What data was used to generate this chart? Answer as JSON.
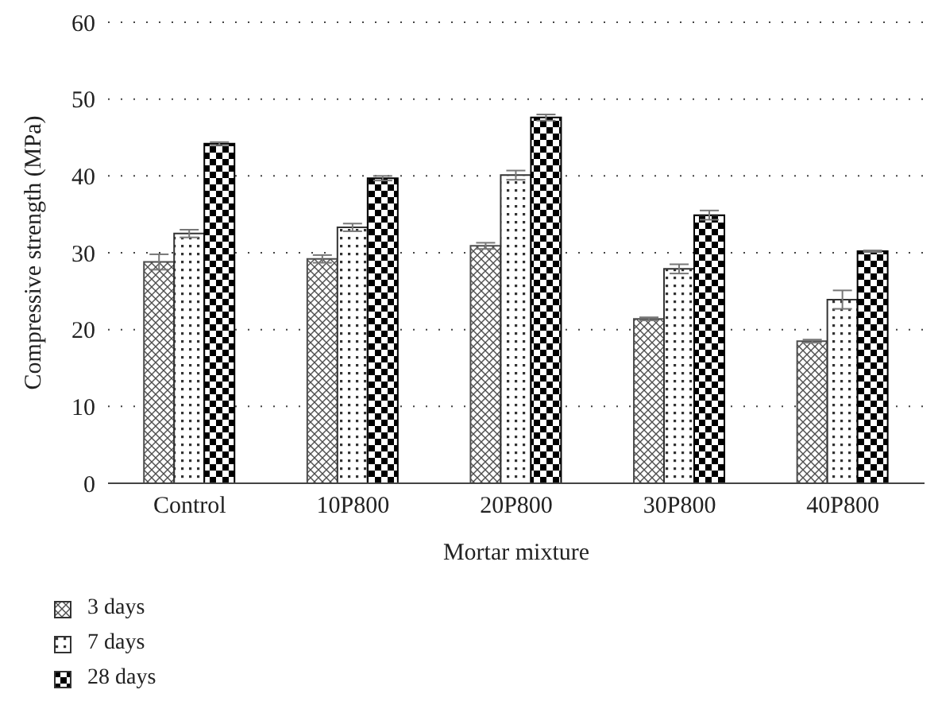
{
  "chart_data": {
    "type": "bar",
    "xlabel": "Mortar mixture",
    "ylabel": "Compressive strength (MPa)",
    "categories": [
      "Control",
      "10P800",
      "20P800",
      "30P800",
      "40P800"
    ],
    "series": [
      {
        "name": "3 days",
        "color": "#4d4d4d",
        "values": [
          28.8,
          29.2,
          30.9,
          21.4,
          18.5
        ],
        "errors": [
          1.0,
          0.5,
          0.4,
          0.2,
          0.2
        ]
      },
      {
        "name": "7 days",
        "color": "#333333",
        "values": [
          32.5,
          33.3,
          40.1,
          27.9,
          23.9
        ],
        "errors": [
          0.5,
          0.5,
          0.6,
          0.6,
          1.2
        ]
      },
      {
        "name": "28 days",
        "color": "#000000",
        "values": [
          44.2,
          39.7,
          47.6,
          34.9,
          30.2
        ],
        "errors": [
          0.2,
          0.3,
          0.4,
          0.6,
          0.1
        ]
      }
    ],
    "ylim": [
      0,
      60
    ],
    "yticks": [
      0,
      10,
      20,
      30,
      40,
      50,
      60
    ],
    "grid": "y",
    "legend": "bottom left"
  }
}
